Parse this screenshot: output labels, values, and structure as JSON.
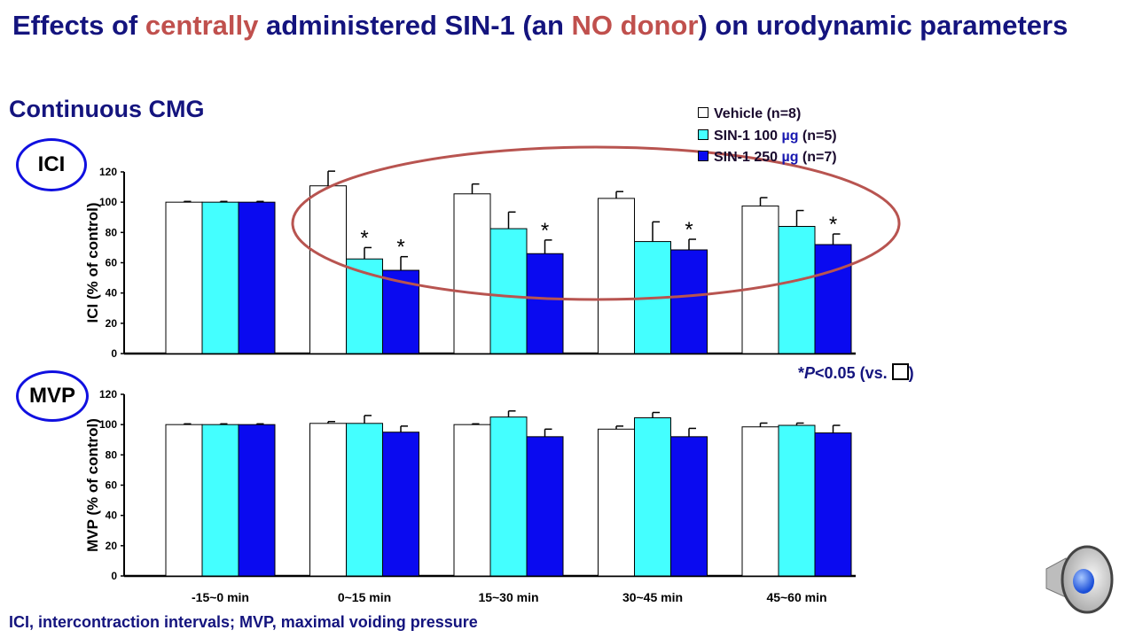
{
  "title": {
    "part1": "Effects of ",
    "part2": "centrally",
    "part3": " administered SIN-1 (an ",
    "part4": "NO donor",
    "part5": ") on urodynamic parameters"
  },
  "subtitle": "Continuous CMG",
  "badges": {
    "ici": "ICI",
    "mvp": "MVP"
  },
  "legend": [
    {
      "label_a": "Vehicle (n=8)",
      "label_b": "",
      "label_c": ""
    },
    {
      "label_a": "SIN-1 100 ",
      "label_b": "µg",
      "label_c": " (n=5)"
    },
    {
      "label_a": "SIN-1 250 ",
      "label_b": "µg",
      "label_c": " (n=7)"
    }
  ],
  "significance": {
    "star": "*",
    "p": "P",
    "text": "<0.05 (vs. ",
    "close": ")"
  },
  "footnote": "ICI, intercontraction intervals;  MVP, maximal voiding pressure",
  "colors": {
    "vehicle": "#ffffff",
    "sin100": "#44ffff",
    "sin250": "#0a0af0",
    "title": "#14147e",
    "accent": "#c0504d"
  },
  "icons": {
    "speaker": "speaker-icon"
  },
  "chart_data": [
    {
      "type": "bar",
      "ylabel": "ICI (% of control)",
      "ylim": [
        0,
        120
      ],
      "yticks": [
        0,
        20,
        40,
        60,
        80,
        100,
        120
      ],
      "categories": [
        "-15~0 min",
        "0~15 min",
        "15~30 min",
        "30~45 min",
        "45~60 min"
      ],
      "series": [
        {
          "name": "Vehicle (n=8)",
          "values": [
            100,
            110.8,
            105.5,
            102.5,
            97.5
          ],
          "error_top": [
            100.5,
            120.5,
            112,
            107,
            103
          ]
        },
        {
          "name": "SIN-1 100 µg (n=5)",
          "values": [
            100,
            62.5,
            82.5,
            74,
            84
          ],
          "error_top": [
            100.5,
            70,
            93.5,
            87,
            94.5
          ]
        },
        {
          "name": "SIN-1 250 µg (n=7)",
          "values": [
            100,
            55,
            66,
            68.5,
            72
          ],
          "error_top": [
            100.5,
            64,
            75,
            75.5,
            79
          ]
        }
      ],
      "significant": [
        [
          false,
          false,
          false,
          false,
          false
        ],
        [
          false,
          true,
          false,
          false,
          false
        ],
        [
          false,
          true,
          true,
          true,
          true
        ]
      ],
      "star": "*",
      "annotation": "ellipse around 0~60 min groups"
    },
    {
      "type": "bar",
      "ylabel": "MVP (% of control)",
      "ylim": [
        0,
        120
      ],
      "yticks": [
        0,
        20,
        40,
        60,
        80,
        100,
        120
      ],
      "categories": [
        "-15~0 min",
        "0~15 min",
        "15~30 min",
        "30~45 min",
        "45~60 min"
      ],
      "series": [
        {
          "name": "Vehicle (n=8)",
          "values": [
            100,
            100.8,
            100,
            97,
            98.5
          ],
          "error_top": [
            100.5,
            102,
            100.5,
            99,
            101
          ]
        },
        {
          "name": "SIN-1 100 µg (n=5)",
          "values": [
            100,
            100.8,
            105,
            104.5,
            99.5
          ],
          "error_top": [
            100.5,
            106,
            109,
            108,
            101
          ]
        },
        {
          "name": "SIN-1 250 µg (n=7)",
          "values": [
            100,
            95,
            92,
            92,
            94.5
          ],
          "error_top": [
            100.5,
            99,
            97,
            97.5,
            99.5
          ]
        }
      ]
    }
  ]
}
